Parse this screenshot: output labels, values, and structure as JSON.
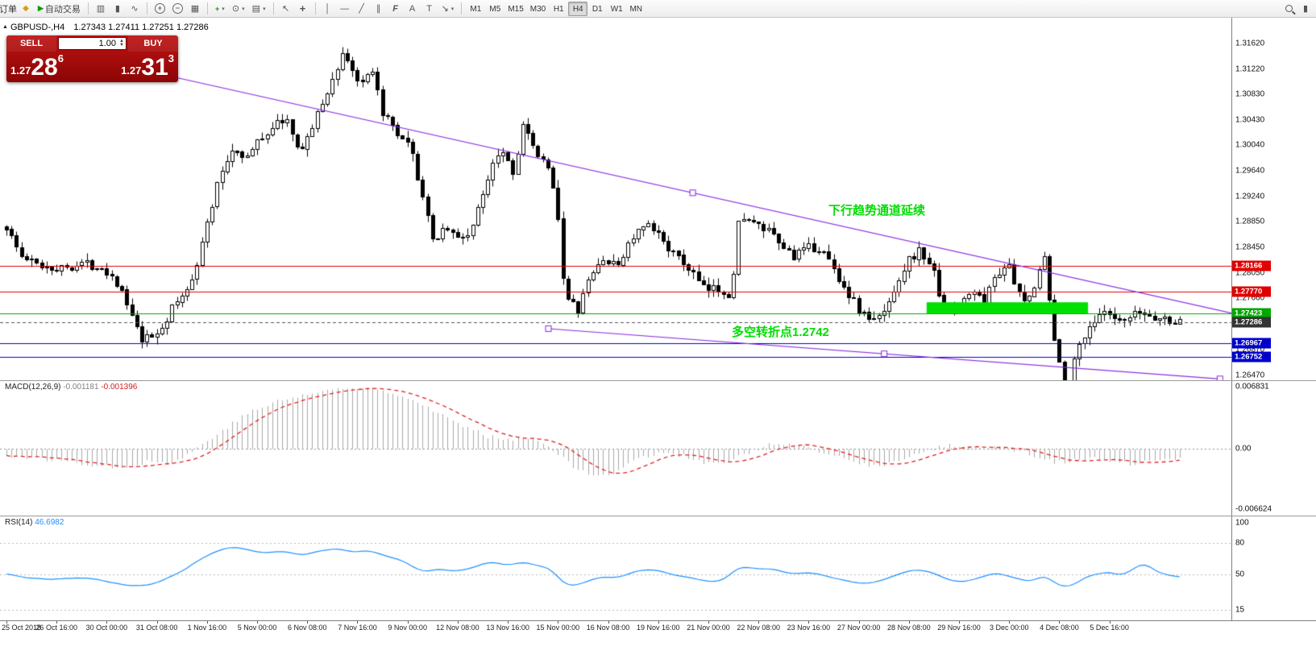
{
  "toolbar": {
    "orders_label": "订单",
    "autotrade_label": "自动交易",
    "timeframes": [
      "M1",
      "M5",
      "M15",
      "M30",
      "H1",
      "H4",
      "D1",
      "W1",
      "MN"
    ],
    "active_timeframe": "H4"
  },
  "icons": {
    "collapse_up": "▲",
    "new_order": "◆",
    "autotrade_play": "▶",
    "chart_bars": "▥",
    "chart_candles": "▮",
    "chart_line": "∿",
    "zoom_in": "+",
    "zoom_out": "−",
    "tile_windows": "▦",
    "indicators_plus": "+",
    "periods_clock": "⊙",
    "templates": "▤",
    "cursor_arrow": "↖",
    "crosshair": "+",
    "vertical_line": "│",
    "horizontal_line": "—",
    "trend_line": "╱",
    "channel": "∥",
    "fibonacci": "F",
    "text_a": "A",
    "text_label": "T",
    "arrow_tool": "↘",
    "dropdown": "▾",
    "spin_up": "▲",
    "spin_down": "▼"
  },
  "chart": {
    "symbol_info": {
      "symbol": "GBPUSD-,H4",
      "ohlc": "1.27343 1.27411 1.27251 1.27286"
    },
    "trade_panel": {
      "sell_label": "SELL",
      "buy_label": "BUY",
      "volume": "1.00",
      "sell_prefix": "1.27",
      "sell_big": "28",
      "sell_sup": "6",
      "buy_prefix": "1.27",
      "buy_big": "31",
      "buy_sup": "3"
    },
    "annotations": {
      "channel_text": "下行趋势通道延续",
      "pivot_text": "多空转折点1.2742",
      "color": "#00dd00"
    }
  },
  "macd": {
    "name": "MACD(12,26,9)",
    "value": "-0.001181",
    "signal": "-0.001396"
  },
  "rsi": {
    "name": "RSI(14)",
    "value": "46.6982"
  },
  "chart_data": {
    "type": "candlestick",
    "symbol": "GBPUSD",
    "timeframe": "H4",
    "price": {
      "y_range": [
        1.26389,
        1.32019
      ],
      "candle_count": 235,
      "bull_color": "#ffffff",
      "bear_color": "#000000",
      "price_path": [
        [
          0,
          1.2878
        ],
        [
          0.012,
          1.2832
        ],
        [
          0.025,
          1.282
        ],
        [
          0.045,
          1.2812
        ],
        [
          0.065,
          1.2822
        ],
        [
          0.082,
          1.2815
        ],
        [
          0.095,
          1.279
        ],
        [
          0.105,
          1.2745
        ],
        [
          0.115,
          1.27
        ],
        [
          0.126,
          1.2708
        ],
        [
          0.135,
          1.2728
        ],
        [
          0.143,
          1.2758
        ],
        [
          0.152,
          1.2772
        ],
        [
          0.162,
          1.282
        ],
        [
          0.172,
          1.289
        ],
        [
          0.182,
          1.2958
        ],
        [
          0.193,
          1.3
        ],
        [
          0.205,
          1.2985
        ],
        [
          0.215,
          1.3012
        ],
        [
          0.228,
          1.3035
        ],
        [
          0.238,
          1.3048
        ],
        [
          0.248,
          1.2995
        ],
        [
          0.258,
          1.302
        ],
        [
          0.268,
          1.3065
        ],
        [
          0.278,
          1.3105
        ],
        [
          0.287,
          1.315
        ],
        [
          0.295,
          1.312
        ],
        [
          0.303,
          1.3095
        ],
        [
          0.311,
          1.312
        ],
        [
          0.32,
          1.3058
        ],
        [
          0.332,
          1.302
        ],
        [
          0.344,
          1.3
        ],
        [
          0.354,
          1.293
        ],
        [
          0.363,
          1.2855
        ],
        [
          0.374,
          1.288
        ],
        [
          0.385,
          1.2858
        ],
        [
          0.395,
          1.2868
        ],
        [
          0.405,
          1.292
        ],
        [
          0.415,
          1.2985
        ],
        [
          0.424,
          1.3
        ],
        [
          0.432,
          1.2958
        ],
        [
          0.44,
          1.3038
        ],
        [
          0.45,
          1.2992
        ],
        [
          0.46,
          1.2972
        ],
        [
          0.468,
          1.2935
        ],
        [
          0.476,
          1.2768
        ],
        [
          0.487,
          1.2748
        ],
        [
          0.497,
          1.2798
        ],
        [
          0.508,
          1.2828
        ],
        [
          0.52,
          1.2815
        ],
        [
          0.532,
          1.2858
        ],
        [
          0.545,
          1.288
        ],
        [
          0.558,
          1.2862
        ],
        [
          0.57,
          1.2832
        ],
        [
          0.583,
          1.281
        ],
        [
          0.595,
          1.2778
        ],
        [
          0.607,
          1.2782
        ],
        [
          0.618,
          1.2772
        ],
        [
          0.625,
          1.2902
        ],
        [
          0.635,
          1.2882
        ],
        [
          0.648,
          1.2872
        ],
        [
          0.66,
          1.2848
        ],
        [
          0.672,
          1.2832
        ],
        [
          0.684,
          1.2845
        ],
        [
          0.695,
          1.2842
        ],
        [
          0.705,
          1.2812
        ],
        [
          0.716,
          1.2778
        ],
        [
          0.727,
          1.2748
        ],
        [
          0.738,
          1.273
        ],
        [
          0.748,
          1.2745
        ],
        [
          0.758,
          1.2788
        ],
        [
          0.768,
          1.2825
        ],
        [
          0.778,
          1.284
        ],
        [
          0.788,
          1.282
        ],
        [
          0.797,
          1.2765
        ],
        [
          0.806,
          1.274
        ],
        [
          0.815,
          1.2762
        ],
        [
          0.824,
          1.278
        ],
        [
          0.833,
          1.2758
        ],
        [
          0.842,
          1.28
        ],
        [
          0.853,
          1.2822
        ],
        [
          0.862,
          1.2772
        ],
        [
          0.87,
          1.2758
        ],
        [
          0.878,
          1.28
        ],
        [
          0.884,
          1.2842
        ],
        [
          0.889,
          1.276
        ],
        [
          0.894,
          1.269
        ],
        [
          0.9,
          1.2645
        ],
        [
          0.905,
          1.263
        ],
        [
          0.913,
          1.2688
        ],
        [
          0.922,
          1.2722
        ],
        [
          0.935,
          1.2744
        ],
        [
          0.95,
          1.2726
        ],
        [
          0.965,
          1.2744
        ],
        [
          0.98,
          1.2736
        ],
        [
          1,
          1.2729
        ]
      ],
      "h_lines": [
        {
          "price": 1.28166,
          "color": "#e00000",
          "style": "solid"
        },
        {
          "price": 1.2777,
          "color": "#e00000",
          "style": "solid"
        },
        {
          "price": 1.27423,
          "color": "#00a800",
          "style": "solid"
        },
        {
          "price": 1.27286,
          "color": "#555555",
          "style": "dash"
        },
        {
          "price": 1.26967,
          "color": "#0000cd",
          "style": "solid"
        },
        {
          "price": 1.26752,
          "color": "#0000cd",
          "style": "solid"
        }
      ],
      "trend_lines": [
        {
          "x1": 0.105,
          "p1": 1.3125,
          "x2": 1.06,
          "p2": 1.2735,
          "color": "#8a2be2"
        },
        {
          "x1": 0.46,
          "p1": 1.2719,
          "x2": 1.03,
          "p2": 1.2641,
          "color": "#8a2be2"
        }
      ],
      "rect": {
        "x1": 0.781,
        "x2": 0.918,
        "p1": 1.27423,
        "p2": 1.276,
        "color": "#00e000"
      },
      "tags": [
        {
          "text": "1.28166",
          "price": 1.28166,
          "color": "#e00000"
        },
        {
          "text": "1.27770",
          "price": 1.2777,
          "color": "#e00000"
        },
        {
          "text": "1.27423",
          "price": 1.27423,
          "color": "#00a800"
        },
        {
          "text": "1.27286",
          "price": 1.27286,
          "color": "#333333"
        },
        {
          "text": "1.26967",
          "price": 1.26967,
          "color": "#0000cd"
        },
        {
          "text": "1.26752",
          "price": 1.26752,
          "color": "#0000cd"
        }
      ],
      "axis_labels": [
        "1.31620",
        "1.31220",
        "1.30830",
        "1.30430",
        "1.30040",
        "1.29640",
        "1.29240",
        "1.28850",
        "1.28450",
        "1.28050",
        "1.27660",
        "1.27260",
        "1.26870",
        "1.26470"
      ]
    },
    "macd": {
      "value_range": [
        -0.00736,
        0.00754
      ],
      "histogram_color": "#a8a8a8",
      "signal_color": "#e02020",
      "path": [
        [
          0,
          -0.0007
        ],
        [
          0.03,
          -0.0011
        ],
        [
          0.06,
          -0.0015
        ],
        [
          0.08,
          -0.0019
        ],
        [
          0.1,
          -0.002
        ],
        [
          0.12,
          -0.0014
        ],
        [
          0.14,
          -0.0016
        ],
        [
          0.155,
          -0.0006
        ],
        [
          0.17,
          0.0008
        ],
        [
          0.19,
          0.0026
        ],
        [
          0.21,
          0.0042
        ],
        [
          0.23,
          0.0052
        ],
        [
          0.25,
          0.0058
        ],
        [
          0.27,
          0.0064
        ],
        [
          0.29,
          0.0066
        ],
        [
          0.31,
          0.0067
        ],
        [
          0.33,
          0.0062
        ],
        [
          0.35,
          0.0052
        ],
        [
          0.37,
          0.0038
        ],
        [
          0.39,
          0.0024
        ],
        [
          0.41,
          0.0014
        ],
        [
          0.43,
          0.0011
        ],
        [
          0.445,
          0.0013
        ],
        [
          0.46,
          0.0006
        ],
        [
          0.472,
          -0.0008
        ],
        [
          0.485,
          -0.0022
        ],
        [
          0.5,
          -0.0031
        ],
        [
          0.515,
          -0.0027
        ],
        [
          0.53,
          -0.0016
        ],
        [
          0.545,
          -0.0008
        ],
        [
          0.56,
          -0.0004
        ],
        [
          0.575,
          -0.0007
        ],
        [
          0.59,
          -0.0014
        ],
        [
          0.605,
          -0.0018
        ],
        [
          0.62,
          -0.0012
        ],
        [
          0.635,
          -0.0002
        ],
        [
          0.65,
          0.0004
        ],
        [
          0.665,
          0.0005
        ],
        [
          0.68,
          0.0001
        ],
        [
          0.7,
          -0.0006
        ],
        [
          0.72,
          -0.0014
        ],
        [
          0.74,
          -0.0019
        ],
        [
          0.76,
          -0.0014
        ],
        [
          0.78,
          -0.0004
        ],
        [
          0.8,
          0.0003
        ],
        [
          0.815,
          0.0004
        ],
        [
          0.83,
          0
        ],
        [
          0.85,
          0.0002
        ],
        [
          0.865,
          -0.0003
        ],
        [
          0.88,
          -0.0009
        ],
        [
          0.895,
          -0.0015
        ],
        [
          0.91,
          -0.0013
        ],
        [
          0.925,
          -0.0011
        ],
        [
          0.94,
          -0.0014
        ],
        [
          0.955,
          -0.0017
        ],
        [
          0.97,
          -0.0015
        ],
        [
          0.985,
          -0.0013
        ],
        [
          1,
          -0.0012
        ]
      ],
      "axis_labels": [
        "0.006831",
        "0.00",
        "-0.006624"
      ]
    },
    "rsi": {
      "range": [
        0,
        100
      ],
      "levels": [
        80,
        50,
        15
      ],
      "line_color": "#1e90ff",
      "path": [
        [
          0,
          50
        ],
        [
          0.02,
          46
        ],
        [
          0.04,
          44
        ],
        [
          0.06,
          47
        ],
        [
          0.08,
          44
        ],
        [
          0.1,
          40
        ],
        [
          0.115,
          38
        ],
        [
          0.13,
          42
        ],
        [
          0.145,
          50
        ],
        [
          0.16,
          60
        ],
        [
          0.175,
          70
        ],
        [
          0.19,
          77
        ],
        [
          0.205,
          74
        ],
        [
          0.22,
          70
        ],
        [
          0.235,
          73
        ],
        [
          0.25,
          68
        ],
        [
          0.265,
          72
        ],
        [
          0.28,
          76
        ],
        [
          0.295,
          71
        ],
        [
          0.31,
          73
        ],
        [
          0.325,
          66
        ],
        [
          0.34,
          62
        ],
        [
          0.355,
          52
        ],
        [
          0.37,
          56
        ],
        [
          0.385,
          52
        ],
        [
          0.4,
          58
        ],
        [
          0.415,
          62
        ],
        [
          0.43,
          57
        ],
        [
          0.44,
          63
        ],
        [
          0.455,
          58
        ],
        [
          0.465,
          55
        ],
        [
          0.476,
          38
        ],
        [
          0.49,
          40
        ],
        [
          0.505,
          48
        ],
        [
          0.52,
          46
        ],
        [
          0.535,
          52
        ],
        [
          0.55,
          55
        ],
        [
          0.565,
          51
        ],
        [
          0.58,
          47
        ],
        [
          0.595,
          42
        ],
        [
          0.61,
          44
        ],
        [
          0.625,
          58
        ],
        [
          0.64,
          55
        ],
        [
          0.655,
          54
        ],
        [
          0.67,
          50
        ],
        [
          0.685,
          52
        ],
        [
          0.7,
          48
        ],
        [
          0.715,
          43
        ],
        [
          0.73,
          40
        ],
        [
          0.745,
          44
        ],
        [
          0.76,
          50
        ],
        [
          0.775,
          55
        ],
        [
          0.79,
          52
        ],
        [
          0.8,
          45
        ],
        [
          0.815,
          42
        ],
        [
          0.83,
          47
        ],
        [
          0.845,
          52
        ],
        [
          0.86,
          46
        ],
        [
          0.875,
          42
        ],
        [
          0.885,
          50
        ],
        [
          0.895,
          40
        ],
        [
          0.905,
          35
        ],
        [
          0.915,
          44
        ],
        [
          0.925,
          50
        ],
        [
          0.94,
          52
        ],
        [
          0.95,
          48
        ],
        [
          0.96,
          54
        ],
        [
          0.97,
          62
        ],
        [
          0.98,
          52
        ],
        [
          0.99,
          49
        ],
        [
          1,
          46.7
        ]
      ],
      "axis_labels": [
        "100",
        "80",
        "50",
        "15"
      ]
    },
    "time_labels": [
      "25 Oct 2018",
      "26 Oct 16:00",
      "30 Oct 00:00",
      "31 Oct 08:00",
      "1 Nov 16:00",
      "5 Nov 00:00",
      "6 Nov 08:00",
      "7 Nov 16:00",
      "9 Nov 00:00",
      "12 Nov 08:00",
      "13 Nov 16:00",
      "15 Nov 00:00",
      "16 Nov 08:00",
      "19 Nov 16:00",
      "21 Nov 00:00",
      "22 Nov 08:00",
      "23 Nov 16:00",
      "27 Nov 00:00",
      "28 Nov 08:00",
      "29 Nov 16:00",
      "3 Dec 00:00",
      "4 Dec 08:00",
      "5 Dec 16:00"
    ]
  }
}
